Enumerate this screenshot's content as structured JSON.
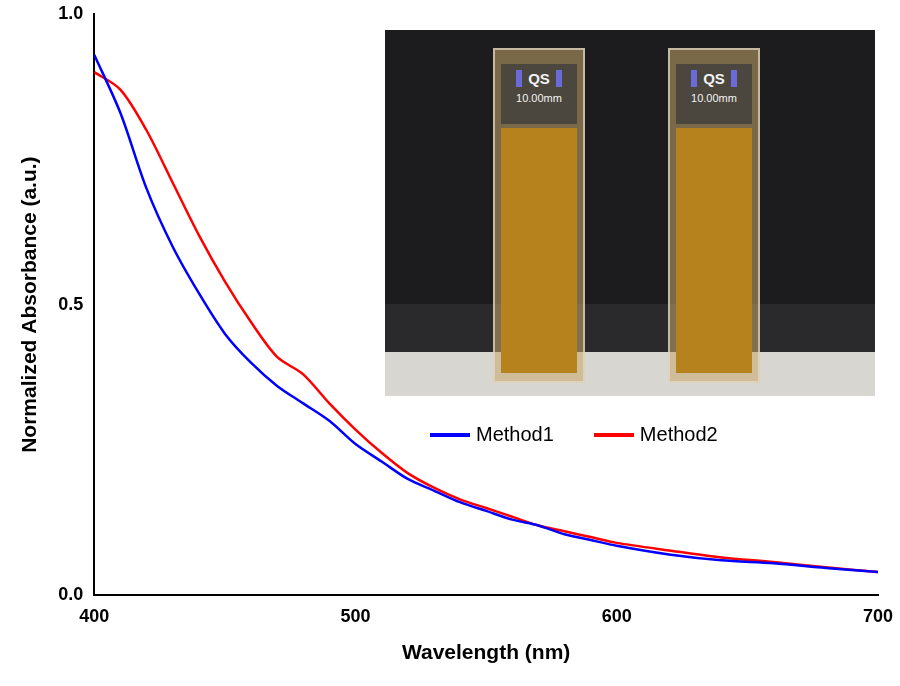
{
  "chart_data": {
    "type": "line",
    "x_label": "Wavelength (nm)",
    "y_label": "Normalized Absorbance (a.u.)",
    "x": [
      400,
      410,
      420,
      430,
      440,
      450,
      460,
      470,
      480,
      490,
      500,
      510,
      520,
      530,
      540,
      550,
      560,
      570,
      580,
      590,
      600,
      620,
      640,
      660,
      680,
      700
    ],
    "series": [
      {
        "name": "Method1",
        "color": "#0000ff",
        "values": [
          0.93,
          0.83,
          0.7,
          0.6,
          0.52,
          0.45,
          0.4,
          0.36,
          0.33,
          0.3,
          0.26,
          0.23,
          0.2,
          0.18,
          0.16,
          0.145,
          0.13,
          0.12,
          0.105,
          0.095,
          0.085,
          0.07,
          0.06,
          0.055,
          0.047,
          0.04
        ]
      },
      {
        "name": "Method2",
        "color": "#ff0000",
        "values": [
          0.9,
          0.87,
          0.8,
          0.71,
          0.62,
          0.54,
          0.47,
          0.41,
          0.38,
          0.33,
          0.285,
          0.245,
          0.21,
          0.185,
          0.165,
          0.15,
          0.135,
          0.12,
          0.11,
          0.1,
          0.09,
          0.077,
          0.065,
          0.057,
          0.048,
          0.04
        ]
      }
    ],
    "xlim": [
      400,
      700
    ],
    "xticks": [
      400,
      500,
      600,
      700
    ],
    "ylim": [
      0,
      1
    ],
    "yticks": [
      {
        "value": 0,
        "label": "0.0"
      },
      {
        "value": 0.5,
        "label": "0.5"
      },
      {
        "value": 1,
        "label": "1.0"
      }
    ],
    "grid": false,
    "legend": "upper right",
    "annotations": [
      [
        "QS",
        "10.00mm"
      ],
      [
        "QS",
        "10.00mm"
      ]
    ]
  }
}
